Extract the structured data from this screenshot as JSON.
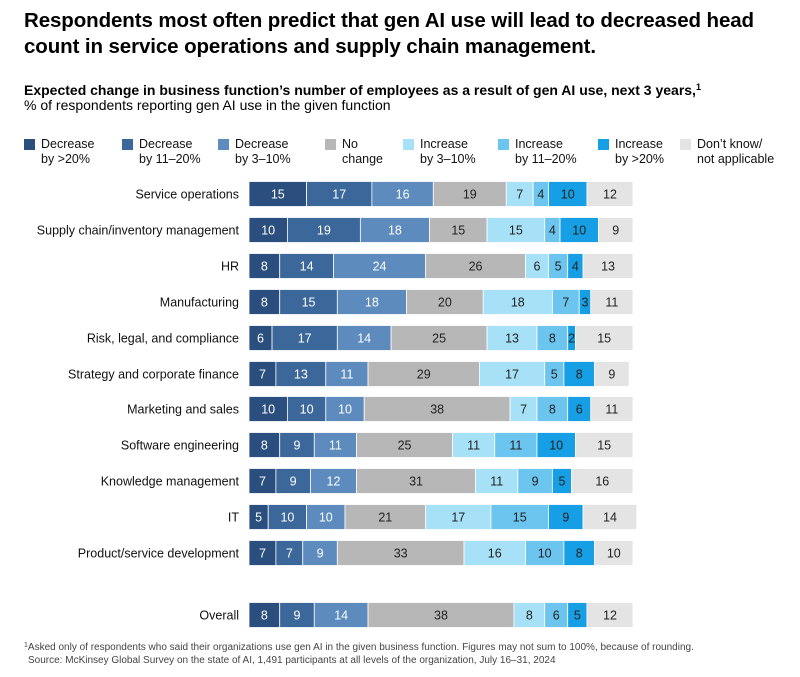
{
  "title": "Respondents most often predict that gen AI use will lead to decreased head count in service operations and supply chain management.",
  "subtitle": "Expected change in business function’s number of employees as a result of gen AI use, next 3 years,",
  "subtitle_footnote_marker": "1",
  "subnote": "% of respondents reporting gen AI use in the given function",
  "footnote_marker": "1",
  "footnote_line1": "Asked only of respondents who said their organizations use gen AI in the given business function. Figures may not sum to 100%, because of rounding.",
  "footnote_line2": "Source: McKinsey Global Survey on the state of AI, 1,491 participants at all levels of the organization, July 16–31, 2024",
  "chart_data": {
    "type": "bar",
    "orientation": "horizontal",
    "stacked": true,
    "legend_position": "top",
    "grid": false,
    "title": "Respondents most often predict that gen AI use will lead to decreased head count in service operations and supply chain management.",
    "categories": [
      "Service operations",
      "Supply chain/inventory management",
      "HR",
      "Manufacturing",
      "Risk, legal, and compliance",
      "Strategy and corporate finance",
      "Marketing and sales",
      "Software engineering",
      "Knowledge management",
      "IT",
      "Product/service development",
      "Overall"
    ],
    "series": [
      {
        "name": "Decrease\nby >20%",
        "color": "#2a4e7d",
        "label_color": "#ffffff",
        "values": [
          15,
          10,
          8,
          8,
          6,
          7,
          10,
          8,
          7,
          5,
          7,
          8
        ]
      },
      {
        "name": "Decrease\nby 11–20%",
        "color": "#3c679a",
        "label_color": "#ffffff",
        "values": [
          17,
          19,
          14,
          15,
          17,
          13,
          10,
          9,
          9,
          10,
          7,
          9
        ]
      },
      {
        "name": "Decrease\nby 3–10%",
        "color": "#5d8bbd",
        "label_color": "#ffffff",
        "values": [
          16,
          18,
          24,
          18,
          14,
          11,
          10,
          11,
          12,
          10,
          9,
          14
        ]
      },
      {
        "name": "No\nchange",
        "color": "#b7b7b7",
        "label_color": "#222222",
        "values": [
          19,
          15,
          26,
          20,
          25,
          29,
          38,
          25,
          31,
          21,
          33,
          38
        ]
      },
      {
        "name": "Increase\nby 3–10%",
        "color": "#a6e1f7",
        "label_color": "#222222",
        "values": [
          7,
          15,
          6,
          18,
          13,
          17,
          7,
          11,
          11,
          17,
          16,
          8
        ]
      },
      {
        "name": "Increase\nby 11–20%",
        "color": "#6cc5ee",
        "label_color": "#222222",
        "values": [
          4,
          4,
          5,
          7,
          8,
          5,
          8,
          11,
          9,
          15,
          10,
          6
        ]
      },
      {
        "name": "Increase\nby >20%",
        "color": "#169fe4",
        "label_color": "#222222",
        "values": [
          10,
          10,
          4,
          3,
          2,
          8,
          6,
          10,
          5,
          9,
          8,
          5
        ]
      },
      {
        "name": "Don’t know/\nnot applicable",
        "color": "#e4e4e4",
        "label_color": "#222222",
        "values": [
          12,
          9,
          13,
          11,
          15,
          9,
          11,
          15,
          16,
          14,
          10,
          12
        ]
      }
    ]
  }
}
